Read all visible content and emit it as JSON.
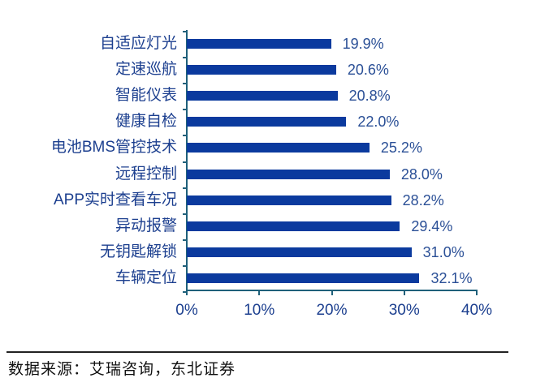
{
  "chart_data": {
    "type": "bar",
    "orientation": "horizontal",
    "title": "",
    "xlabel": "",
    "ylabel": "",
    "categories": [
      "自适应灯光",
      "定速巡航",
      "智能仪表",
      "健康自检",
      "电池BMS管控技术",
      "远程控制",
      "APP实时查看车况",
      "异动报警",
      "无钥匙解锁",
      "车辆定位"
    ],
    "values": [
      19.9,
      20.6,
      20.8,
      22.0,
      25.2,
      28.0,
      28.2,
      29.4,
      31.0,
      32.1
    ],
    "value_labels": [
      "19.9%",
      "20.6%",
      "20.8%",
      "22.0%",
      "25.2%",
      "28.0%",
      "28.2%",
      "29.4%",
      "31.0%",
      "32.1%"
    ],
    "xlim": [
      0,
      40
    ],
    "x_ticks": [
      "0%",
      "10%",
      "20%",
      "30%",
      "40%"
    ],
    "grid": false,
    "legend": null,
    "bar_color": "#0b3a9e",
    "axis_color": "#1f607a"
  },
  "footer": {
    "source": "数据来源：艾瑞咨询，东北证券"
  }
}
